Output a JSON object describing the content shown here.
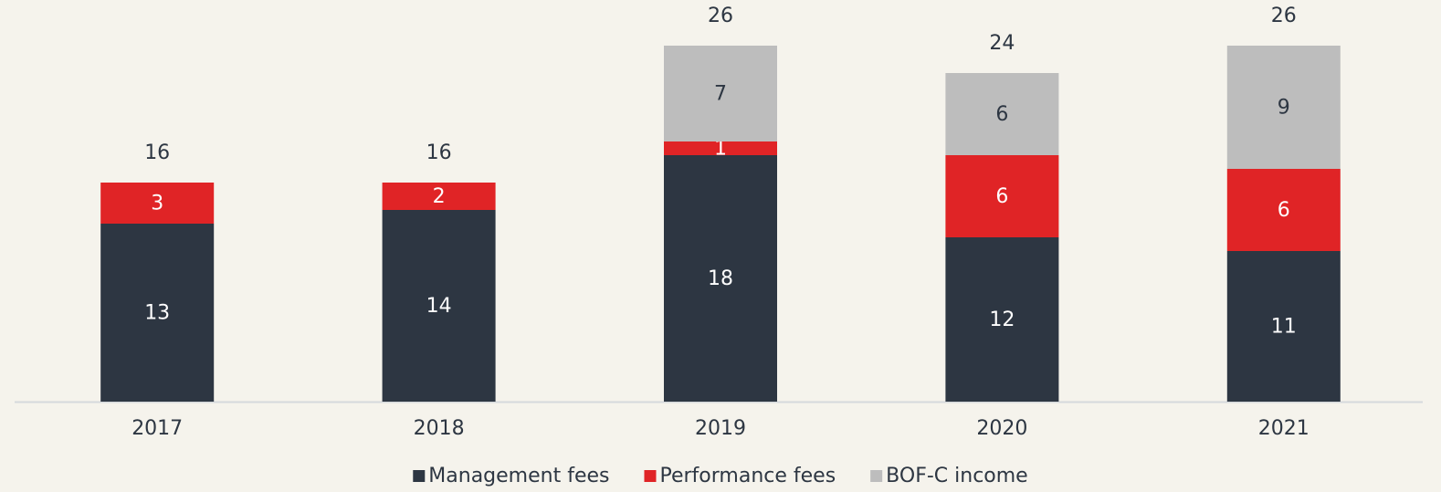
{
  "chart_data": {
    "type": "stacked_bar",
    "categories": [
      "2017",
      "2018",
      "2019",
      "2020",
      "2021"
    ],
    "series": [
      {
        "name": "Management fees",
        "color": "#2d3642",
        "values": [
          13,
          14,
          18,
          12,
          11
        ]
      },
      {
        "name": "Performance fees",
        "color": "#e02426",
        "values": [
          3,
          2,
          1,
          6,
          6
        ]
      },
      {
        "name": "BOF-C income",
        "color": "#bdbdbd",
        "values": [
          null,
          null,
          7,
          6,
          9
        ]
      }
    ],
    "totals": [
      16,
      16,
      26,
      24,
      26
    ],
    "ylim": [
      0,
      28
    ],
    "legend": "bottom"
  }
}
